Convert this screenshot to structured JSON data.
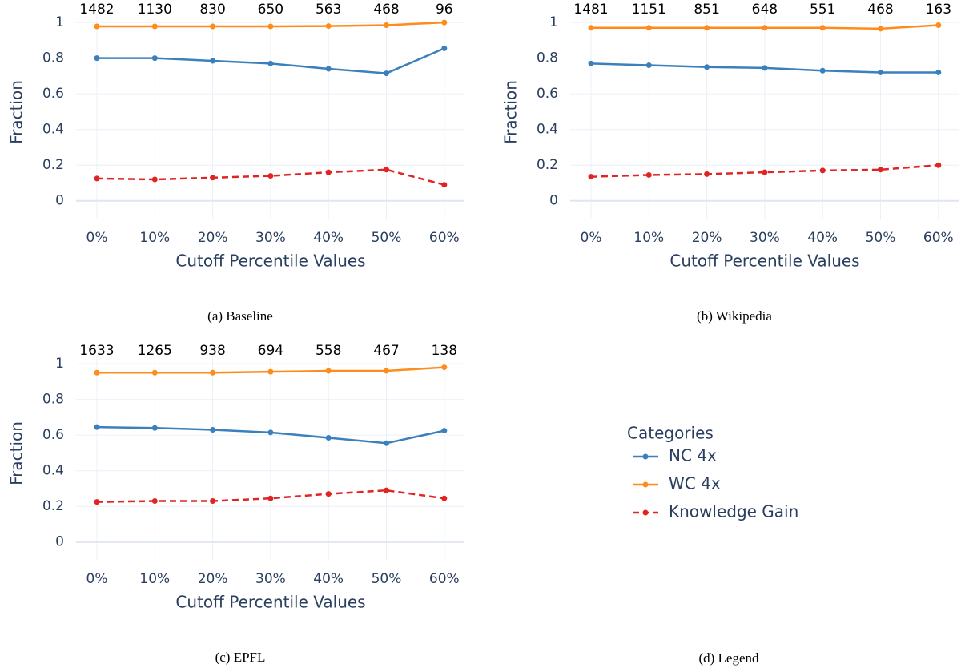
{
  "chart_data": [
    {
      "type": "line",
      "caption": "(a) Baseline",
      "xlabel": "Cutoff Percentile Values",
      "ylabel": "Fraction",
      "categories": [
        "0%",
        "10%",
        "20%",
        "30%",
        "40%",
        "50%",
        "60%"
      ],
      "annotations": [
        1482,
        1130,
        830,
        650,
        563,
        468,
        96
      ],
      "ylim": [
        -0.1,
        1.05
      ],
      "yticks": [
        0,
        0.2,
        0.4,
        0.6,
        0.8,
        1
      ],
      "grid": true,
      "series": [
        {
          "name": "NC 4x",
          "color": "#3b80bd",
          "line_style": "solid",
          "values": [
            0.8,
            0.8,
            0.785,
            0.77,
            0.74,
            0.715,
            0.855
          ]
        },
        {
          "name": "WC 4x",
          "color": "#ff8c1a",
          "line_style": "solid",
          "values": [
            0.978,
            0.978,
            0.978,
            0.978,
            0.98,
            0.985,
            1.0
          ]
        },
        {
          "name": "Knowledge Gain",
          "color": "#e02424",
          "line_style": "dash",
          "values": [
            0.125,
            0.12,
            0.13,
            0.14,
            0.16,
            0.175,
            0.09
          ]
        }
      ]
    },
    {
      "type": "line",
      "caption": "(b) Wikipedia",
      "xlabel": "Cutoff Percentile Values",
      "ylabel": "Fraction",
      "categories": [
        "0%",
        "10%",
        "20%",
        "30%",
        "40%",
        "50%",
        "60%"
      ],
      "annotations": [
        1481,
        1151,
        851,
        648,
        551,
        468,
        163
      ],
      "ylim": [
        -0.1,
        1.05
      ],
      "yticks": [
        0,
        0.2,
        0.4,
        0.6,
        0.8,
        1
      ],
      "grid": true,
      "series": [
        {
          "name": "NC 4x",
          "color": "#3b80bd",
          "line_style": "solid",
          "values": [
            0.77,
            0.76,
            0.75,
            0.745,
            0.73,
            0.72,
            0.72
          ]
        },
        {
          "name": "WC 4x",
          "color": "#ff8c1a",
          "line_style": "solid",
          "values": [
            0.97,
            0.97,
            0.97,
            0.97,
            0.97,
            0.965,
            0.985
          ]
        },
        {
          "name": "Knowledge Gain",
          "color": "#e02424",
          "line_style": "dash",
          "values": [
            0.135,
            0.145,
            0.15,
            0.16,
            0.17,
            0.175,
            0.2
          ]
        }
      ]
    },
    {
      "type": "line",
      "caption": "(c) EPFL",
      "xlabel": "Cutoff Percentile Values",
      "ylabel": "Fraction",
      "categories": [
        "0%",
        "10%",
        "20%",
        "30%",
        "40%",
        "50%",
        "60%"
      ],
      "annotations": [
        1633,
        1265,
        938,
        694,
        558,
        467,
        138
      ],
      "ylim": [
        -0.1,
        1.05
      ],
      "yticks": [
        0,
        0.2,
        0.4,
        0.6,
        0.8,
        1
      ],
      "grid": true,
      "series": [
        {
          "name": "NC 4x",
          "color": "#3b80bd",
          "line_style": "solid",
          "values": [
            0.645,
            0.64,
            0.63,
            0.615,
            0.585,
            0.555,
            0.625
          ]
        },
        {
          "name": "WC 4x",
          "color": "#ff8c1a",
          "line_style": "solid",
          "values": [
            0.95,
            0.95,
            0.95,
            0.955,
            0.96,
            0.96,
            0.98
          ]
        },
        {
          "name": "Knowledge Gain",
          "color": "#e02424",
          "line_style": "dash",
          "values": [
            0.225,
            0.23,
            0.23,
            0.245,
            0.27,
            0.29,
            0.245
          ]
        }
      ]
    }
  ],
  "legend": {
    "title": "Categories",
    "caption": "(d) Legend"
  }
}
